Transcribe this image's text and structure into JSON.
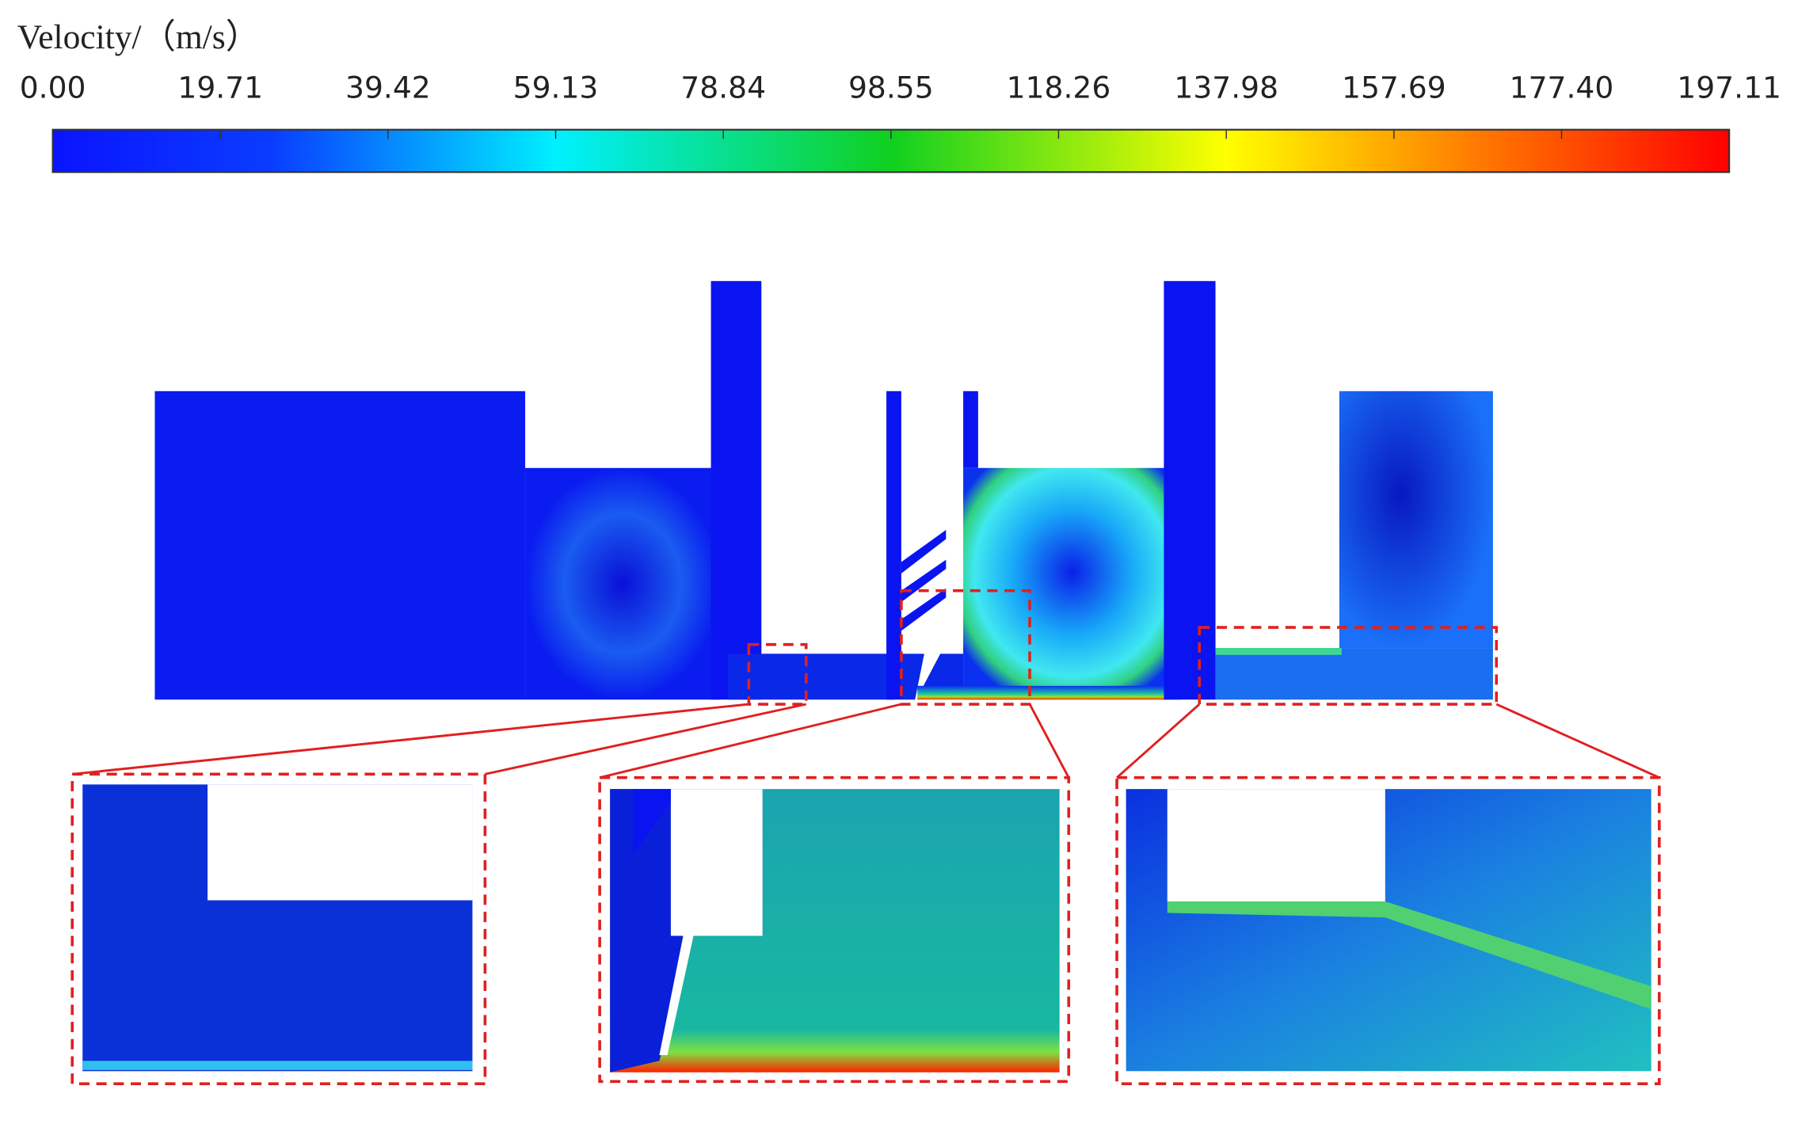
{
  "colorbar": {
    "title": "Velocity/（m/s）",
    "range": [
      0,
      197.11
    ],
    "ticks": [
      {
        "value": 0,
        "label": "0.00"
      },
      {
        "value": 19.71,
        "label": "19.71"
      },
      {
        "value": 39.42,
        "label": "39.42"
      },
      {
        "value": 59.13,
        "label": "59.13"
      },
      {
        "value": 78.84,
        "label": "78.84"
      },
      {
        "value": 98.55,
        "label": "98.55"
      },
      {
        "value": 118.26,
        "label": "118.26"
      },
      {
        "value": 137.98,
        "label": "137.98"
      },
      {
        "value": 157.69,
        "label": "157.69"
      },
      {
        "value": 177.4,
        "label": "177.40"
      },
      {
        "value": 197.11,
        "label": "197.11"
      }
    ]
  }
}
